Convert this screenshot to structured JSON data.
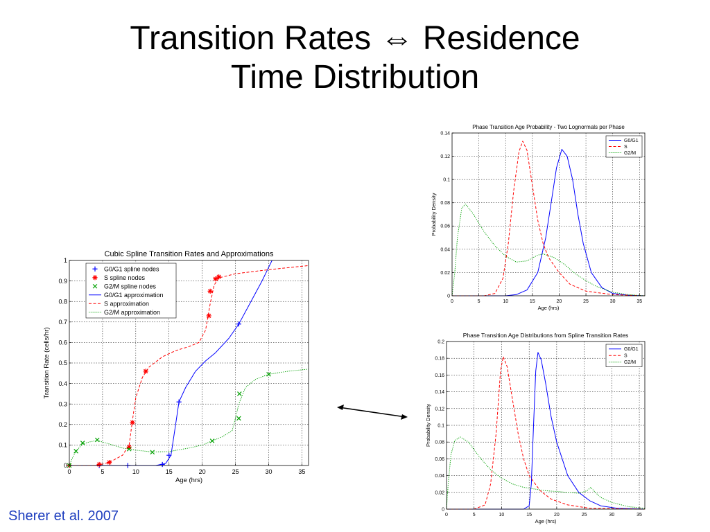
{
  "slide": {
    "title_line1": "Transition Rates ⇔ Residence",
    "title_line2": "Time Distribution",
    "citation": "Sherer et al. 2007"
  },
  "chart_data": [
    {
      "id": "left",
      "type": "line",
      "title": "Cubic Spline Transition Rates and Approximations",
      "xlabel": "Age (hrs)",
      "ylabel": "Transition Rate (cells/hr)",
      "xlim": [
        0,
        36
      ],
      "ylim": [
        0,
        1
      ],
      "xticks": [
        0,
        5,
        10,
        15,
        20,
        25,
        30,
        35
      ],
      "yticks": [
        0,
        0.1,
        0.2,
        0.3,
        0.4,
        0.5,
        0.6,
        0.7,
        0.8,
        0.9,
        1
      ],
      "grid": true,
      "legend_position": "top-left",
      "series": [
        {
          "name": "G0/G1 spline nodes",
          "kind": "markers",
          "marker": "plus",
          "color": "#0000ff",
          "points": [
            [
              0,
              0
            ],
            [
              4.5,
              0
            ],
            [
              8.8,
              0
            ],
            [
              14,
              0.005
            ],
            [
              15,
              0.05
            ],
            [
              16.5,
              0.31
            ],
            [
              25.5,
              0.69
            ]
          ]
        },
        {
          "name": "S spline nodes",
          "kind": "markers",
          "marker": "star",
          "color": "#ff0000",
          "points": [
            [
              0,
              0
            ],
            [
              4.5,
              0.005
            ],
            [
              6,
              0.015
            ],
            [
              9,
              0.09
            ],
            [
              9.5,
              0.21
            ],
            [
              11.5,
              0.46
            ],
            [
              21,
              0.73
            ],
            [
              21.2,
              0.85
            ],
            [
              22,
              0.91
            ],
            [
              22.5,
              0.92
            ]
          ]
        },
        {
          "name": "G2/M spline nodes",
          "kind": "markers",
          "marker": "x",
          "color": "#00a000",
          "points": [
            [
              0,
              0
            ],
            [
              1,
              0.07
            ],
            [
              2,
              0.11
            ],
            [
              4.2,
              0.125
            ],
            [
              9,
              0.08
            ],
            [
              12.5,
              0.065
            ],
            [
              21.5,
              0.12
            ],
            [
              25.5,
              0.23
            ],
            [
              25.6,
              0.35
            ],
            [
              30,
              0.445
            ]
          ]
        },
        {
          "name": "G0/G1 approximation",
          "kind": "line",
          "dash": "solid",
          "color": "#0000ff",
          "points": [
            [
              0,
              0
            ],
            [
              8,
              0
            ],
            [
              13,
              0
            ],
            [
              14.5,
              0.01
            ],
            [
              15.3,
              0.05
            ],
            [
              16,
              0.2
            ],
            [
              16.5,
              0.31
            ],
            [
              17.5,
              0.38
            ],
            [
              19,
              0.46
            ],
            [
              20.5,
              0.51
            ],
            [
              22,
              0.55
            ],
            [
              24,
              0.62
            ],
            [
              25.5,
              0.69
            ],
            [
              27,
              0.78
            ],
            [
              29,
              0.9
            ],
            [
              30.5,
              1
            ]
          ]
        },
        {
          "name": "S approximation",
          "kind": "line",
          "dash": "dashed",
          "color": "#ff0000",
          "points": [
            [
              0,
              0
            ],
            [
              4,
              0
            ],
            [
              6,
              0.015
            ],
            [
              8,
              0.05
            ],
            [
              9,
              0.1
            ],
            [
              9.5,
              0.22
            ],
            [
              10,
              0.33
            ],
            [
              11,
              0.43
            ],
            [
              12,
              0.48
            ],
            [
              14,
              0.53
            ],
            [
              16,
              0.56
            ],
            [
              18,
              0.58
            ],
            [
              19.5,
              0.6
            ],
            [
              20.5,
              0.66
            ],
            [
              21.2,
              0.79
            ],
            [
              21.8,
              0.88
            ],
            [
              22.5,
              0.915
            ],
            [
              25,
              0.935
            ],
            [
              30,
              0.955
            ],
            [
              36,
              0.975
            ]
          ]
        },
        {
          "name": "G2/M approximation",
          "kind": "line",
          "dash": "dotted",
          "color": "#00a000",
          "points": [
            [
              0,
              0
            ],
            [
              0.5,
              0.04
            ],
            [
              1,
              0.07
            ],
            [
              2,
              0.105
            ],
            [
              3,
              0.115
            ],
            [
              4.2,
              0.122
            ],
            [
              6,
              0.105
            ],
            [
              8,
              0.085
            ],
            [
              10,
              0.075
            ],
            [
              12.5,
              0.066
            ],
            [
              15,
              0.068
            ],
            [
              18,
              0.085
            ],
            [
              20,
              0.1
            ],
            [
              21.5,
              0.12
            ],
            [
              23,
              0.14
            ],
            [
              24.5,
              0.17
            ],
            [
              25,
              0.23
            ],
            [
              25.5,
              0.3
            ],
            [
              26.5,
              0.38
            ],
            [
              28,
              0.42
            ],
            [
              30,
              0.445
            ],
            [
              33,
              0.46
            ],
            [
              36,
              0.47
            ]
          ]
        }
      ]
    },
    {
      "id": "top-right",
      "type": "line",
      "title": "Phase Transition Age Probability - Two Lognormals per Phase",
      "xlabel": "Age (hrs)",
      "ylabel": "Probability Density",
      "xlim": [
        0,
        36
      ],
      "ylim": [
        0,
        0.14
      ],
      "xticks": [
        0,
        5,
        10,
        15,
        20,
        25,
        30,
        35
      ],
      "yticks": [
        0,
        0.02,
        0.04,
        0.06,
        0.08,
        0.1,
        0.12,
        0.14
      ],
      "grid": true,
      "legend_position": "top-right",
      "series": [
        {
          "name": "G0/G1",
          "kind": "line",
          "dash": "solid",
          "color": "#0000ff",
          "points": [
            [
              0,
              0
            ],
            [
              10,
              0
            ],
            [
              12,
              0.001
            ],
            [
              14,
              0.005
            ],
            [
              16,
              0.02
            ],
            [
              17.5,
              0.05
            ],
            [
              18.5,
              0.08
            ],
            [
              19.5,
              0.11
            ],
            [
              20.5,
              0.126
            ],
            [
              21.5,
              0.12
            ],
            [
              22.5,
              0.1
            ],
            [
              23.5,
              0.07
            ],
            [
              24.5,
              0.045
            ],
            [
              26,
              0.02
            ],
            [
              28,
              0.007
            ],
            [
              30,
              0.002
            ],
            [
              33,
              0.0005
            ],
            [
              36,
              0
            ]
          ]
        },
        {
          "name": "S",
          "kind": "line",
          "dash": "dashed",
          "color": "#ff0000",
          "points": [
            [
              0,
              0
            ],
            [
              6,
              0
            ],
            [
              8,
              0.002
            ],
            [
              9.5,
              0.015
            ],
            [
              10.5,
              0.045
            ],
            [
              11.5,
              0.09
            ],
            [
              12.5,
              0.124
            ],
            [
              13.2,
              0.133
            ],
            [
              14,
              0.125
            ],
            [
              15,
              0.095
            ],
            [
              16,
              0.065
            ],
            [
              17,
              0.045
            ],
            [
              18,
              0.033
            ],
            [
              20,
              0.02
            ],
            [
              22,
              0.01
            ],
            [
              25,
              0.004
            ],
            [
              30,
              0.001
            ],
            [
              36,
              0
            ]
          ]
        },
        {
          "name": "G2/M",
          "kind": "line",
          "dash": "dotted",
          "color": "#00a000",
          "points": [
            [
              0,
              0
            ],
            [
              0.5,
              0.02
            ],
            [
              1,
              0.05
            ],
            [
              1.8,
              0.075
            ],
            [
              2.5,
              0.079
            ],
            [
              4,
              0.07
            ],
            [
              6,
              0.055
            ],
            [
              8,
              0.043
            ],
            [
              10,
              0.034
            ],
            [
              12,
              0.029
            ],
            [
              14,
              0.03
            ],
            [
              16,
              0.035
            ],
            [
              17,
              0.036
            ],
            [
              19,
              0.033
            ],
            [
              21,
              0.027
            ],
            [
              23,
              0.019
            ],
            [
              25,
              0.013
            ],
            [
              27,
              0.008
            ],
            [
              30,
              0.003
            ],
            [
              33,
              0.001
            ],
            [
              36,
              0
            ]
          ]
        }
      ]
    },
    {
      "id": "bottom-right",
      "type": "line",
      "title": "Phase Transition Age Distributions from Spline Transition Rates",
      "xlabel": "Age (hrs)",
      "ylabel": "Probability Density",
      "xlim": [
        0,
        36
      ],
      "ylim": [
        0,
        0.2
      ],
      "xticks": [
        0,
        5,
        10,
        15,
        20,
        25,
        30,
        35
      ],
      "yticks": [
        0,
        0.02,
        0.04,
        0.06,
        0.08,
        0.1,
        0.12,
        0.14,
        0.16,
        0.18,
        0.2
      ],
      "grid": true,
      "legend_position": "top-right",
      "series": [
        {
          "name": "G0/G1",
          "kind": "line",
          "dash": "solid",
          "color": "#0000ff",
          "points": [
            [
              0,
              0
            ],
            [
              14,
              0
            ],
            [
              15,
              0.004
            ],
            [
              15.4,
              0.03
            ],
            [
              15.8,
              0.1
            ],
            [
              16.2,
              0.165
            ],
            [
              16.6,
              0.187
            ],
            [
              17.2,
              0.178
            ],
            [
              18,
              0.15
            ],
            [
              19,
              0.11
            ],
            [
              20,
              0.08
            ],
            [
              22,
              0.04
            ],
            [
              24,
              0.02
            ],
            [
              26,
              0.01
            ],
            [
              28,
              0.004
            ],
            [
              31,
              0.001
            ],
            [
              36,
              0
            ]
          ]
        },
        {
          "name": "S",
          "kind": "line",
          "dash": "dashed",
          "color": "#ff0000",
          "points": [
            [
              0,
              0
            ],
            [
              5,
              0
            ],
            [
              7,
              0.005
            ],
            [
              8,
              0.03
            ],
            [
              9,
              0.09
            ],
            [
              9.8,
              0.165
            ],
            [
              10.3,
              0.182
            ],
            [
              11,
              0.17
            ],
            [
              12,
              0.13
            ],
            [
              13,
              0.09
            ],
            [
              14,
              0.06
            ],
            [
              15,
              0.04
            ],
            [
              17,
              0.022
            ],
            [
              19,
              0.012
            ],
            [
              22,
              0.005
            ],
            [
              26,
              0.001
            ],
            [
              36,
              0
            ]
          ]
        },
        {
          "name": "G2/M",
          "kind": "line",
          "dash": "dotted",
          "color": "#00a000",
          "points": [
            [
              0,
              0
            ],
            [
              0.3,
              0.03
            ],
            [
              0.8,
              0.065
            ],
            [
              1.5,
              0.082
            ],
            [
              2.5,
              0.086
            ],
            [
              4,
              0.08
            ],
            [
              6,
              0.062
            ],
            [
              8,
              0.047
            ],
            [
              10,
              0.037
            ],
            [
              12,
              0.03
            ],
            [
              14,
              0.026
            ],
            [
              18,
              0.022
            ],
            [
              22,
              0.02
            ],
            [
              24,
              0.019
            ],
            [
              25.5,
              0.022
            ],
            [
              26.2,
              0.026
            ],
            [
              27,
              0.02
            ],
            [
              28,
              0.014
            ],
            [
              30,
              0.008
            ],
            [
              33,
              0.003
            ],
            [
              36,
              0.001
            ]
          ]
        }
      ]
    }
  ]
}
